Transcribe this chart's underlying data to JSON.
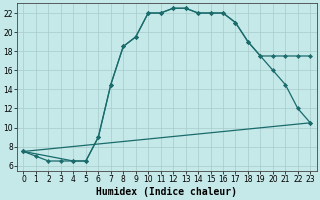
{
  "xlabel": "Humidex (Indice chaleur)",
  "bg_color": "#c5e8e8",
  "line_color": "#1a6b6b",
  "grid_color": "#a8cccc",
  "xlim": [
    -0.5,
    23.5
  ],
  "ylim": [
    5.5,
    23
  ],
  "xticks": [
    0,
    1,
    2,
    3,
    4,
    5,
    6,
    7,
    8,
    9,
    10,
    11,
    12,
    13,
    14,
    15,
    16,
    17,
    18,
    19,
    20,
    21,
    22,
    23
  ],
  "yticks": [
    6,
    8,
    10,
    12,
    14,
    16,
    18,
    20,
    22
  ],
  "line1_x": [
    0,
    1,
    2,
    3,
    4,
    5,
    6,
    7,
    8,
    9,
    10,
    11,
    12,
    13,
    14,
    15,
    16,
    17,
    18,
    19,
    20,
    21,
    22,
    23
  ],
  "line1_y": [
    7.5,
    7.0,
    6.5,
    6.5,
    6.5,
    6.5,
    9.0,
    14.5,
    18.5,
    19.5,
    22.0,
    22.0,
    22.5,
    22.5,
    22.0,
    22.0,
    22.0,
    21.0,
    19.0,
    17.5,
    17.5,
    17.5,
    17.5,
    17.5
  ],
  "line2_x": [
    0,
    4,
    5,
    6,
    7,
    8,
    9,
    10,
    11,
    12,
    13,
    14,
    15,
    16,
    17,
    18,
    19,
    20,
    21,
    22,
    23
  ],
  "line2_y": [
    7.5,
    6.5,
    6.5,
    9.0,
    14.5,
    18.5,
    19.5,
    22.0,
    22.0,
    22.5,
    22.5,
    22.0,
    22.0,
    22.0,
    21.0,
    19.0,
    17.5,
    16.0,
    14.5,
    12.0,
    10.5
  ],
  "line3_x": [
    0,
    23
  ],
  "line3_y": [
    7.5,
    10.5
  ],
  "marker_size": 2.2,
  "linewidth": 0.9,
  "xlabel_fontsize": 7,
  "tick_fontsize": 5.5
}
